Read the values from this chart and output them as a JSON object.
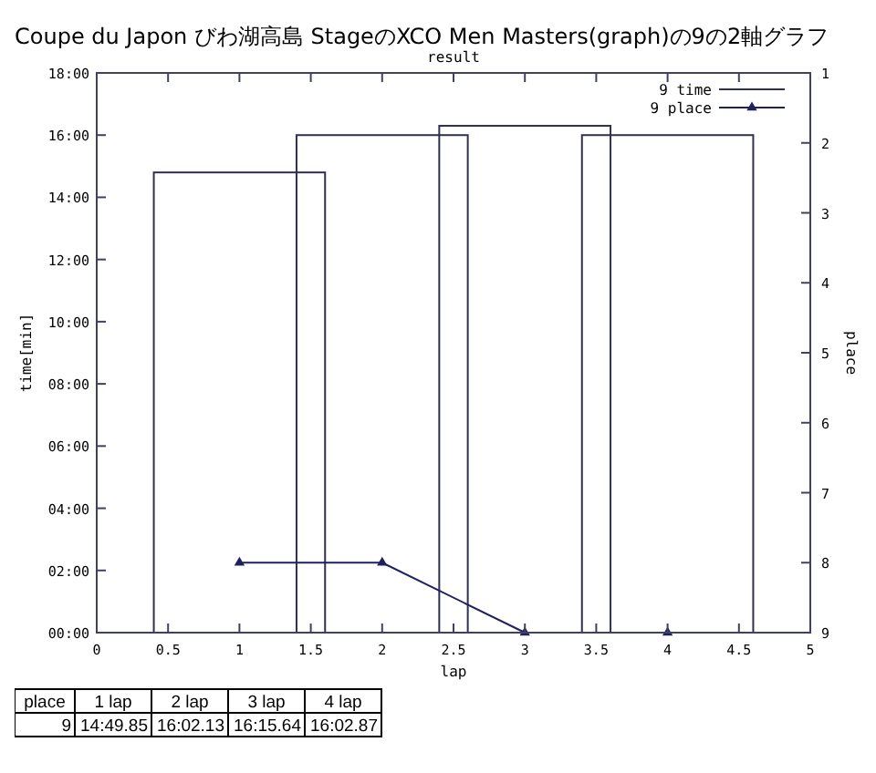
{
  "chart_data": {
    "type": "bar",
    "title": "Coupe du Japon びわ湖高島 StageのXCO Men Masters(graph)の9の2軸グラフ",
    "subtitle": "result",
    "xlabel": "lap",
    "ylabel": "time[min]",
    "y2label": "place",
    "x": [
      1,
      2,
      3,
      4
    ],
    "series": [
      {
        "name": "9 time",
        "color": "#303050",
        "values": [
          14.8,
          16.0,
          16.3,
          16.0
        ]
      },
      {
        "name": "9 place",
        "type": "line",
        "axis": "y2",
        "color": "#202060",
        "marker": "triangle",
        "values": [
          8,
          8,
          9,
          9
        ]
      }
    ],
    "xlim": [
      0,
      5
    ],
    "xticks": [
      0,
      0.5,
      1,
      1.5,
      2,
      2.5,
      3,
      3.5,
      4,
      4.5,
      5
    ],
    "ylim": [
      0,
      18
    ],
    "yticks": [
      {
        "value": 0,
        "label": "00:00"
      },
      {
        "value": 2,
        "label": "02:00"
      },
      {
        "value": 4,
        "label": "04:00"
      },
      {
        "value": 6,
        "label": "06:00"
      },
      {
        "value": 8,
        "label": "08:00"
      },
      {
        "value": 10,
        "label": "10:00"
      },
      {
        "value": 12,
        "label": "12:00"
      },
      {
        "value": 14,
        "label": "14:00"
      },
      {
        "value": 16,
        "label": "16:00"
      },
      {
        "value": 18,
        "label": "18:00"
      }
    ],
    "y2lim": [
      9,
      1
    ],
    "y2ticks": [
      1,
      2,
      3,
      4,
      5,
      6,
      7,
      8,
      9
    ],
    "legend": "top right",
    "grid": false,
    "annotations": [
      "place",
      "1 lap",
      "2 lap",
      "3 lap",
      "4 lap",
      "9",
      "14:49.85",
      "16:02.13",
      "16:15.64",
      "16:02.87"
    ]
  }
}
